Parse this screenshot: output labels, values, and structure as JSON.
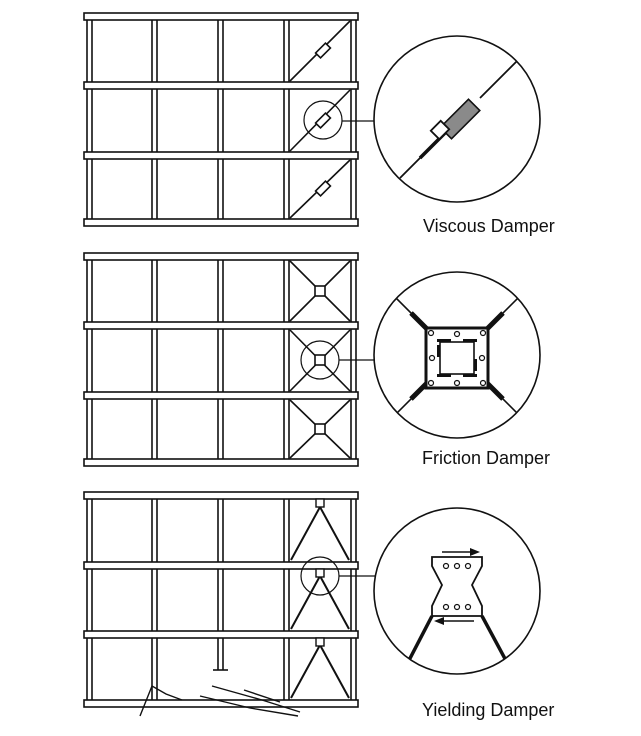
{
  "labels": {
    "viscous": "Viscous Damper",
    "friction": "Friction Damper",
    "yielding": "Yielding Damper"
  },
  "colors": {
    "line": "#111111",
    "background": "#ffffff",
    "damper_fill": "#8a8a8a"
  }
}
